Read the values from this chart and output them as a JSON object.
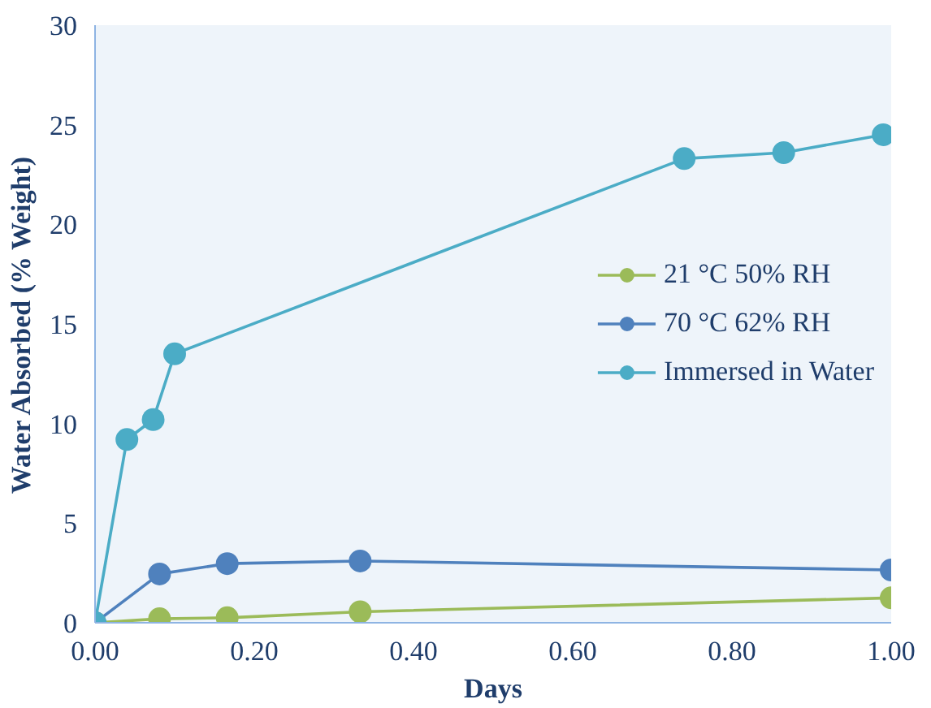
{
  "chart_data": {
    "type": "line",
    "xlabel": "Days",
    "ylabel": "Water Absorbed (% Weight)",
    "xlim": [
      0,
      1.0
    ],
    "ylim": [
      0,
      30
    ],
    "xticks": [
      {
        "value": 0,
        "label": "0.00"
      },
      {
        "value": 0.2,
        "label": "0.20"
      },
      {
        "value": 0.4,
        "label": "0.40"
      },
      {
        "value": 0.6,
        "label": "0.60"
      },
      {
        "value": 0.8,
        "label": "0.80"
      },
      {
        "value": 1.0,
        "label": "1.00"
      }
    ],
    "yticks": [
      0,
      5,
      10,
      15,
      20,
      25,
      30
    ],
    "grid": false,
    "legend": "right",
    "marker": "circle",
    "line_style": "solid",
    "series": [
      {
        "name": "21 °C 50% RH",
        "color": "#9bbb59",
        "x": [
          0,
          0.081,
          0.166,
          0.333,
          1.0
        ],
        "values": [
          0,
          0.2,
          0.25,
          0.55,
          1.25
        ]
      },
      {
        "name": "70 °C 62% RH",
        "color": "#4f81bd",
        "x": [
          0,
          0.081,
          0.166,
          0.333,
          1.0
        ],
        "values": [
          0,
          2.45,
          2.97,
          3.1,
          2.65
        ]
      },
      {
        "name": "Immersed in Water",
        "color": "#4bacc6",
        "x": [
          0,
          0.04,
          0.073,
          0.1,
          0.74,
          0.865,
          0.99
        ],
        "values": [
          0,
          9.2,
          10.2,
          13.5,
          23.3,
          23.6,
          24.5
        ]
      }
    ]
  }
}
